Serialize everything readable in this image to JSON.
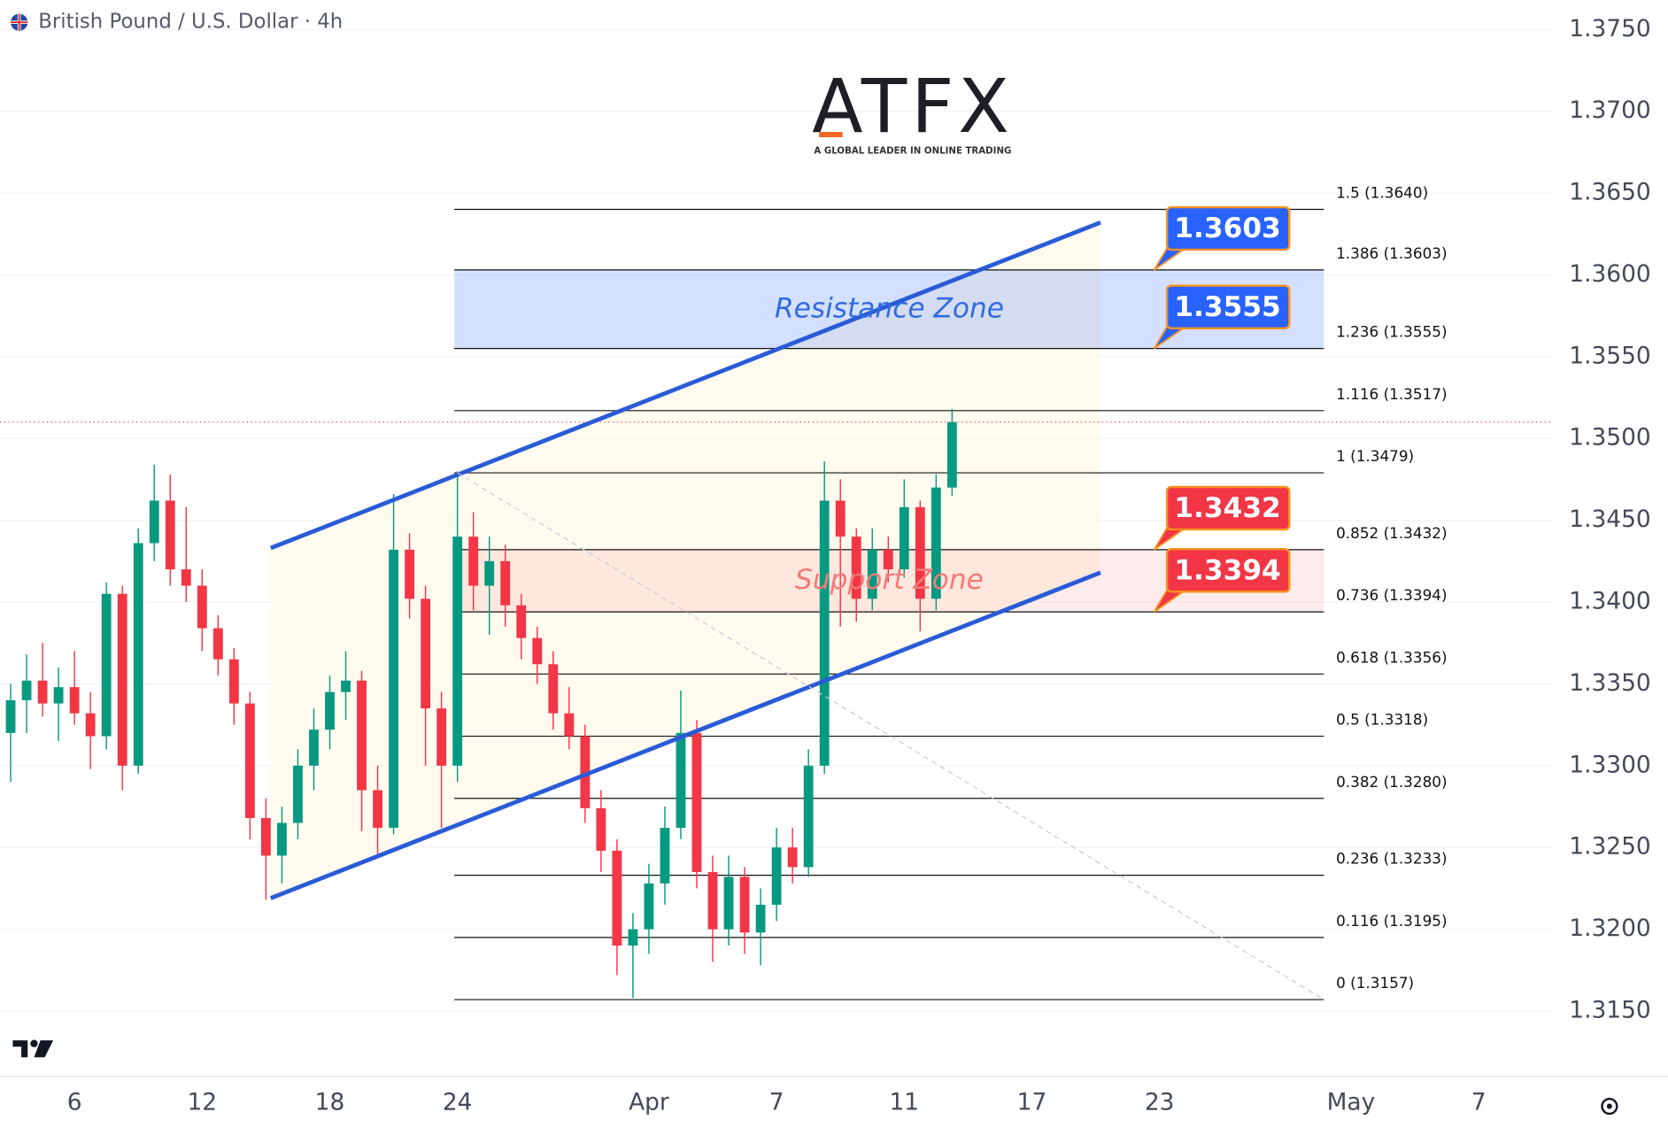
{
  "header": {
    "title": "British Pound / U.S. Dollar · 4h"
  },
  "logo": {
    "name": "ATFX",
    "tagline": "A GLOBAL LEADER IN ONLINE TRADING"
  },
  "chart_data": {
    "type": "candlestick",
    "categories": [
      null,
      null,
      null,
      null,
      "6",
      null,
      null,
      null,
      null,
      null,
      null,
      null,
      "12",
      null,
      null,
      null,
      null,
      null,
      null,
      null,
      "18",
      null,
      null,
      null,
      null,
      null,
      null,
      null,
      "24",
      null,
      null,
      null,
      null,
      null,
      null,
      null,
      null,
      null,
      null,
      null,
      "Apr",
      null,
      null,
      null,
      null,
      null,
      null,
      null,
      "7",
      null,
      null,
      null,
      null,
      null,
      null,
      null,
      "11",
      null,
      null,
      null,
      null,
      null,
      null,
      null,
      "17",
      null,
      null,
      null,
      null,
      null,
      null,
      null,
      "23",
      null,
      null,
      null,
      null,
      null,
      null,
      null,
      null,
      null,
      null,
      null,
      "May",
      null,
      null,
      null,
      null,
      null,
      null,
      null,
      "7",
      null,
      null,
      null,
      null
    ],
    "open": [
      1.332,
      1.334,
      1.3352,
      1.3338,
      1.3348,
      1.3332,
      1.3318,
      1.3405,
      1.33,
      1.3436,
      1.3462,
      1.342,
      1.341,
      1.3384,
      1.3365,
      1.3338,
      1.3268,
      1.3245,
      1.3265,
      1.33,
      1.3322,
      1.3345,
      1.3352,
      1.3285,
      1.3262,
      1.3432,
      1.3402,
      1.3335,
      1.33,
      1.344,
      1.341,
      1.3425,
      1.3398,
      1.3378,
      1.3362,
      1.3332,
      1.3318,
      1.3274,
      1.3248,
      1.319,
      1.32,
      1.3228,
      1.3262,
      1.332,
      1.3235,
      1.32,
      1.3232,
      1.3198,
      1.3215,
      1.325,
      1.3238,
      1.33,
      1.3462,
      1.344,
      1.3402,
      1.3432,
      1.342,
      1.3458,
      1.3402,
      1.347,
      null,
      null,
      null,
      null,
      null,
      null,
      null,
      null,
      null,
      null,
      null,
      null,
      null,
      null,
      null,
      null,
      null,
      null,
      null,
      null,
      null,
      null,
      null,
      null,
      null,
      null,
      null,
      null,
      null,
      null,
      null,
      null,
      null,
      null,
      null,
      null,
      null
    ],
    "high": [
      1.335,
      1.3368,
      1.3375,
      1.336,
      1.337,
      1.3345,
      1.3412,
      1.341,
      1.3445,
      1.3484,
      1.3478,
      1.3458,
      1.342,
      1.3392,
      1.3372,
      1.3345,
      1.328,
      1.3275,
      1.331,
      1.3335,
      1.3355,
      1.337,
      1.3358,
      1.33,
      1.3466,
      1.3442,
      1.341,
      1.3345,
      1.348,
      1.3455,
      1.344,
      1.3435,
      1.3405,
      1.3385,
      1.337,
      1.3348,
      1.3325,
      1.3285,
      1.3255,
      1.321,
      1.324,
      1.3275,
      1.3346,
      1.3328,
      1.3245,
      1.3245,
      1.3238,
      1.3225,
      1.3262,
      1.3262,
      1.331,
      1.3486,
      1.3475,
      1.3445,
      1.3445,
      1.344,
      1.3475,
      1.3462,
      1.3478,
      1.3518,
      null,
      null,
      null,
      null,
      null,
      null,
      null,
      null,
      null,
      null,
      null,
      null,
      null,
      null,
      null,
      null,
      null,
      null,
      null,
      null,
      null,
      null,
      null,
      null,
      null,
      null,
      null,
      null,
      null,
      null,
      null,
      null,
      null,
      null,
      null,
      null,
      null
    ],
    "low": [
      1.329,
      1.332,
      1.333,
      1.3315,
      1.3325,
      1.3298,
      1.331,
      1.3285,
      1.3295,
      1.3425,
      1.341,
      1.34,
      1.337,
      1.3355,
      1.3325,
      1.3255,
      1.3218,
      1.3228,
      1.3255,
      1.3285,
      1.331,
      1.3328,
      1.326,
      1.3245,
      1.3258,
      1.339,
      1.33,
      1.3262,
      1.329,
      1.3395,
      1.338,
      1.3385,
      1.3365,
      1.335,
      1.3322,
      1.331,
      1.3265,
      1.3235,
      1.3172,
      1.3158,
      1.3185,
      1.3215,
      1.3255,
      1.3225,
      1.318,
      1.319,
      1.3185,
      1.3178,
      1.3205,
      1.3228,
      1.3232,
      1.3295,
      1.3385,
      1.3388,
      1.3395,
      1.3412,
      1.3415,
      1.3382,
      1.3395,
      1.3465,
      null,
      null,
      null,
      null,
      null,
      null,
      null,
      null,
      null,
      null,
      null,
      null,
      null,
      null,
      null,
      null,
      null,
      null,
      null,
      null,
      null,
      null,
      null,
      null,
      null,
      null,
      null,
      null,
      null,
      null,
      null,
      null,
      null,
      null,
      null,
      null,
      null
    ],
    "close": [
      1.334,
      1.3352,
      1.3338,
      1.3348,
      1.3332,
      1.3318,
      1.3405,
      1.33,
      1.3436,
      1.3462,
      1.342,
      1.341,
      1.3384,
      1.3365,
      1.3338,
      1.3268,
      1.3245,
      1.3265,
      1.33,
      1.3322,
      1.3345,
      1.3352,
      1.3285,
      1.3262,
      1.3432,
      1.3402,
      1.3335,
      1.33,
      1.344,
      1.341,
      1.3425,
      1.3398,
      1.3378,
      1.3362,
      1.3332,
      1.3318,
      1.3274,
      1.3248,
      1.319,
      1.32,
      1.3228,
      1.3262,
      1.332,
      1.3235,
      1.32,
      1.3232,
      1.3198,
      1.3215,
      1.325,
      1.3238,
      1.33,
      1.3462,
      1.344,
      1.3402,
      1.3432,
      1.342,
      1.3458,
      1.3402,
      1.347,
      1.351,
      null,
      null,
      null,
      null,
      null,
      null,
      null,
      null,
      null,
      null,
      null,
      null,
      null,
      null,
      null,
      null,
      null,
      null,
      null,
      null,
      null,
      null,
      null,
      null,
      null,
      null,
      null,
      null,
      null,
      null,
      null,
      null,
      null,
      null,
      null,
      null,
      null
    ],
    "up_color": "#089981",
    "down_color": "#f23645",
    "ylim": [
      1.311,
      1.3768
    ],
    "yticks": [
      {
        "value": 1.315,
        "label": "1.3150"
      },
      {
        "value": 1.32,
        "label": "1.3200"
      },
      {
        "value": 1.325,
        "label": "1.3250"
      },
      {
        "value": 1.33,
        "label": "1.3300"
      },
      {
        "value": 1.335,
        "label": "1.3350"
      },
      {
        "value": 1.34,
        "label": "1.3400"
      },
      {
        "value": 1.345,
        "label": "1.3450"
      },
      {
        "value": 1.35,
        "label": "1.3500"
      },
      {
        "value": 1.355,
        "label": "1.3550"
      },
      {
        "value": 1.36,
        "label": "1.3600"
      },
      {
        "value": 1.365,
        "label": "1.3650"
      },
      {
        "value": 1.37,
        "label": "1.3700"
      },
      {
        "value": 1.375,
        "label": "1.3750"
      }
    ],
    "grid": true,
    "last_price": 1.351,
    "fibonacci": {
      "x_range": [
        27.8,
        82.3
      ],
      "levels": [
        {
          "value": 1.364,
          "label": "1.5 (1.3640)"
        },
        {
          "value": 1.3603,
          "label": "1.386 (1.3603)"
        },
        {
          "value": 1.3555,
          "label": "1.236 (1.3555)"
        },
        {
          "value": 1.3517,
          "label": "1.116 (1.3517)"
        },
        {
          "value": 1.3479,
          "label": "1 (1.3479)"
        },
        {
          "value": 1.3432,
          "label": "0.852 (1.3432)"
        },
        {
          "value": 1.3394,
          "label": "0.736 (1.3394)"
        },
        {
          "value": 1.3356,
          "label": "0.618 (1.3356)"
        },
        {
          "value": 1.3318,
          "label": "0.5 (1.3318)"
        },
        {
          "value": 1.328,
          "label": "0.382 (1.3280)"
        },
        {
          "value": 1.3233,
          "label": "0.236 (1.3233)"
        },
        {
          "value": 1.3195,
          "label": "0.116 (1.3195)"
        },
        {
          "value": 1.3157,
          "label": "0 (1.3157)"
        }
      ]
    },
    "zones": [
      {
        "label": "Resistance Zone",
        "low": 1.3555,
        "high": 1.3603,
        "color": "#2962ff"
      },
      {
        "label": "Support Zone",
        "low": 1.3394,
        "high": 1.3432,
        "color": "#f23645"
      }
    ],
    "trendlines": [
      {
        "x": [
          16.3,
          68.3
        ],
        "y": [
          1.3433,
          1.3632
        ],
        "color": "#2a5bd7"
      },
      {
        "x": [
          16.3,
          68.3
        ],
        "y": [
          1.3219,
          1.3418
        ],
        "color": "#2a5bd7"
      },
      {
        "x": [
          28,
          82.3
        ],
        "y": [
          1.3479,
          1.3157
        ],
        "color": "#c8cbd3"
      }
    ],
    "annotations": [
      {
        "label": "1.3603",
        "value": 1.3603,
        "color": "#2962ff"
      },
      {
        "label": "1.3555",
        "value": 1.3555,
        "color": "#2962ff"
      },
      {
        "label": "1.3432",
        "value": 1.3432,
        "color": "#f23645"
      },
      {
        "label": "1.3394",
        "value": 1.3394,
        "color": "#f23645"
      }
    ]
  }
}
